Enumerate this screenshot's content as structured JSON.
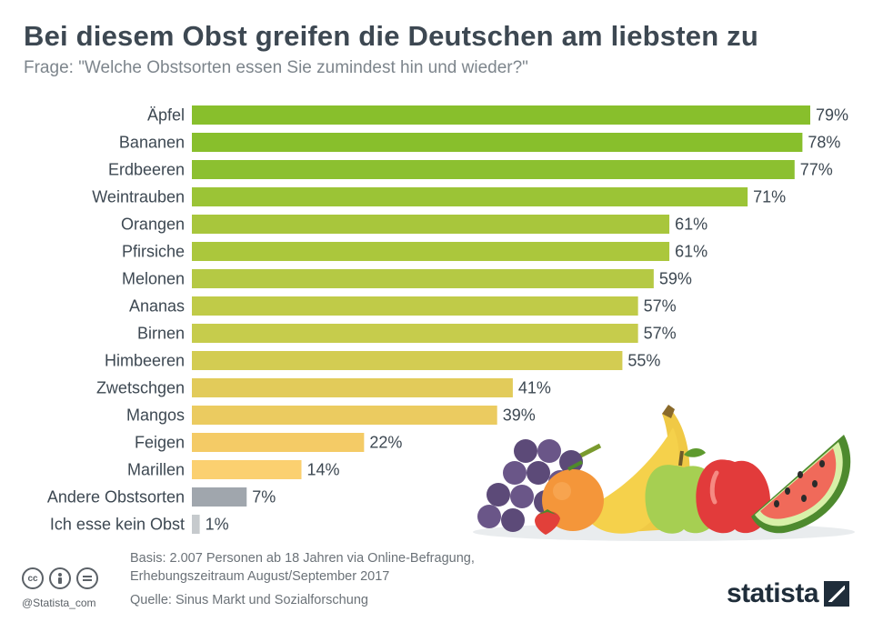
{
  "header": {
    "title": "Bei diesem Obst greifen die Deutschen am liebsten zu",
    "subtitle": "Frage: \"Welche Obstsorten essen Sie zumindest hin und wieder?\""
  },
  "chart_data": {
    "type": "bar",
    "orientation": "horizontal",
    "categories": [
      "Äpfel",
      "Bananen",
      "Erdbeeren",
      "Weintrauben",
      "Orangen",
      "Pfirsiche",
      "Melonen",
      "Ananas",
      "Birnen",
      "Himbeeren",
      "Zwetschgen",
      "Mangos",
      "Feigen",
      "Marillen",
      "Andere Obstsorten",
      "Ich esse kein Obst"
    ],
    "values": [
      79,
      78,
      77,
      71,
      61,
      61,
      59,
      57,
      57,
      55,
      41,
      39,
      22,
      14,
      7,
      1
    ],
    "value_labels": [
      "79%",
      "78%",
      "77%",
      "71%",
      "61%",
      "61%",
      "59%",
      "57%",
      "57%",
      "55%",
      "41%",
      "39%",
      "22%",
      "14%",
      "7%",
      "1%"
    ],
    "colors": [
      "#88bf2c",
      "#88bf2c",
      "#8cc030",
      "#9bc436",
      "#a8c63c",
      "#abc73c",
      "#b5c944",
      "#c0cb48",
      "#c6cc4c",
      "#d3cc52",
      "#e2cb5a",
      "#ebcb60",
      "#f4cb66",
      "#fbd070",
      "#a0a6ad",
      "#c6cacd"
    ],
    "xlim": [
      0,
      79
    ],
    "grid": false,
    "legend": "none"
  },
  "illustration": {
    "name": "fruit-illustration"
  },
  "footer": {
    "basis_line1": "Basis: 2.007 Personen ab 18 Jahren via Online-Befragung,",
    "basis_line2": "Erhebungszeitraum August/September 2017",
    "source": "Quelle: Sinus Markt und Sozialforschung",
    "handle": "@Statista_com",
    "brand": "statista",
    "cc_icons": [
      "cc",
      "by",
      "nd"
    ]
  }
}
